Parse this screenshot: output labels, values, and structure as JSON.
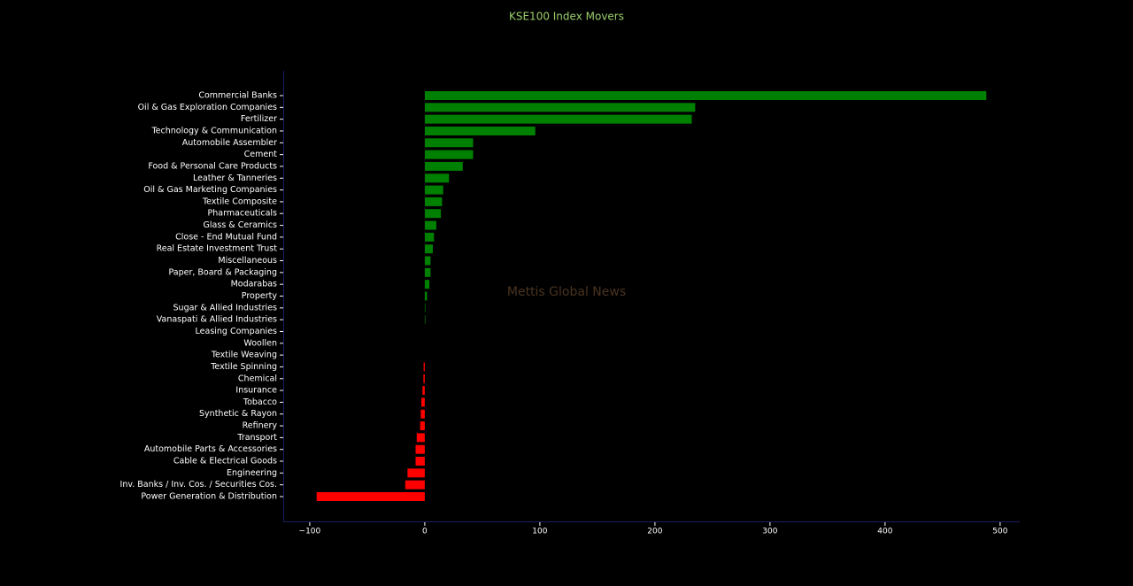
{
  "chart_data": {
    "type": "barh",
    "title": "KSE100 Index Movers",
    "watermark": "Mettis Global News",
    "categories": [
      "Commercial Banks",
      "Oil & Gas Exploration Companies",
      "Fertilizer",
      "Technology & Communication",
      "Automobile Assembler",
      "Cement",
      "Food & Personal Care Products",
      "Leather & Tanneries",
      "Oil & Gas Marketing Companies",
      "Textile Composite",
      "Pharmaceuticals",
      "Glass & Ceramics",
      "Close - End Mutual Fund",
      "Real Estate Investment Trust",
      "Miscellaneous",
      "Paper, Board & Packaging",
      "Modarabas",
      "Property",
      "Sugar & Allied Industries",
      "Vanaspati & Allied Industries",
      "Leasing Companies",
      "Woollen",
      "Textile Weaving",
      "Textile Spinning",
      "Chemical",
      "Insurance",
      "Tobacco",
      "Synthetic & Rayon",
      "Refinery",
      "Transport",
      "Automobile Parts & Accessories",
      "Cable & Electrical Goods",
      "Engineering",
      "Inv. Banks / Inv. Cos. / Securities Cos.",
      "Power Generation & Distribution"
    ],
    "values": [
      488,
      235,
      232,
      96,
      42,
      42,
      33,
      21,
      16,
      15,
      14,
      10,
      8,
      7,
      5,
      5,
      4,
      2,
      0.5,
      0.5,
      0,
      0,
      0,
      -1,
      -1.2,
      -2,
      -3,
      -3.5,
      -4,
      -7,
      -8,
      -8,
      -15,
      -17,
      -94
    ],
    "positive_color": "#008000",
    "negative_color": "#ff0000",
    "xlim": [
      -123,
      517
    ],
    "xticks": [
      {
        "value": -100,
        "label": "−100"
      },
      0,
      100,
      200,
      300,
      400,
      500
    ],
    "grid": false
  }
}
